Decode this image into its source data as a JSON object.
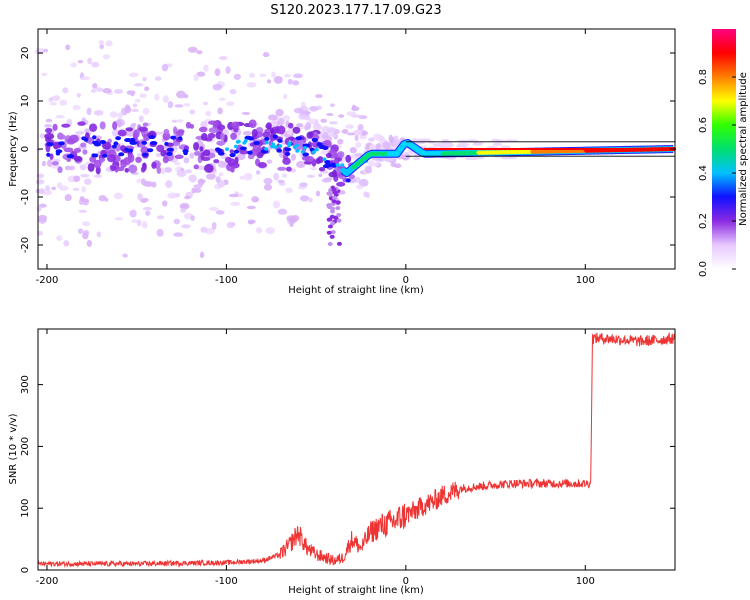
{
  "title": "S120.2023.177.17.09.G23",
  "chart_data": [
    {
      "type": "heatmap",
      "xlabel": "Height of straight line (km)",
      "ylabel": "Frequency (Hz)",
      "xlim": [
        -205,
        150
      ],
      "ylim": [
        -25,
        25
      ],
      "xticks": [
        -200,
        -100,
        0,
        100
      ],
      "yticks": [
        -20,
        -10,
        0,
        10,
        20
      ],
      "grid": false,
      "colorbar": {
        "label": "Normalized spectral amplitude",
        "range": [
          0,
          1
        ],
        "ticks": [
          0.0,
          0.2,
          0.4,
          0.6,
          0.8
        ],
        "colormap": [
          "#ffffff",
          "#e8c8ff",
          "#8a2be2",
          "#1010ff",
          "#00c0ff",
          "#00e070",
          "#30ff00",
          "#ffff00",
          "#ff8000",
          "#ff0000",
          "#ff0080"
        ]
      },
      "ridge": [
        {
          "x": -200,
          "y": 0.5
        },
        {
          "x": -100,
          "y": 0.5
        },
        {
          "x": -80,
          "y": 1
        },
        {
          "x": -50,
          "y": 0
        },
        {
          "x": -40,
          "y": -3
        },
        {
          "x": -33,
          "y": -5
        },
        {
          "x": -20,
          "y": -1
        },
        {
          "x": -5,
          "y": -1
        },
        {
          "x": 0,
          "y": 1.5
        },
        {
          "x": 10,
          "y": -1
        },
        {
          "x": 150,
          "y": 0
        }
      ]
    },
    {
      "type": "line",
      "xlabel": "Height of straight line (km)",
      "ylabel": "SNR (10 * v/v)",
      "xlim": [
        -205,
        150
      ],
      "ylim": [
        0,
        390
      ],
      "xticks": [
        -200,
        -100,
        0,
        100
      ],
      "yticks": [
        0,
        100,
        200,
        300
      ],
      "grid": false,
      "color": "#ee3333",
      "series": [
        {
          "x": [
            -205,
            -150,
            -100,
            -80,
            -70,
            -65,
            -60,
            -55,
            -50,
            -45,
            -40,
            -35,
            -30,
            -25,
            -20,
            -15,
            -10,
            -5,
            0,
            5,
            10,
            15,
            20,
            25,
            30,
            40,
            50,
            60,
            70,
            80,
            90,
            100,
            103,
            104,
            105,
            110,
            120,
            130,
            140,
            150
          ],
          "values": [
            10,
            10,
            12,
            15,
            25,
            40,
            60,
            35,
            25,
            20,
            15,
            20,
            50,
            35,
            60,
            70,
            75,
            80,
            90,
            95,
            105,
            110,
            120,
            125,
            132,
            135,
            138,
            140,
            140,
            140,
            140,
            140,
            140,
            375,
            375,
            375,
            373,
            370,
            372,
            375
          ]
        }
      ]
    }
  ]
}
